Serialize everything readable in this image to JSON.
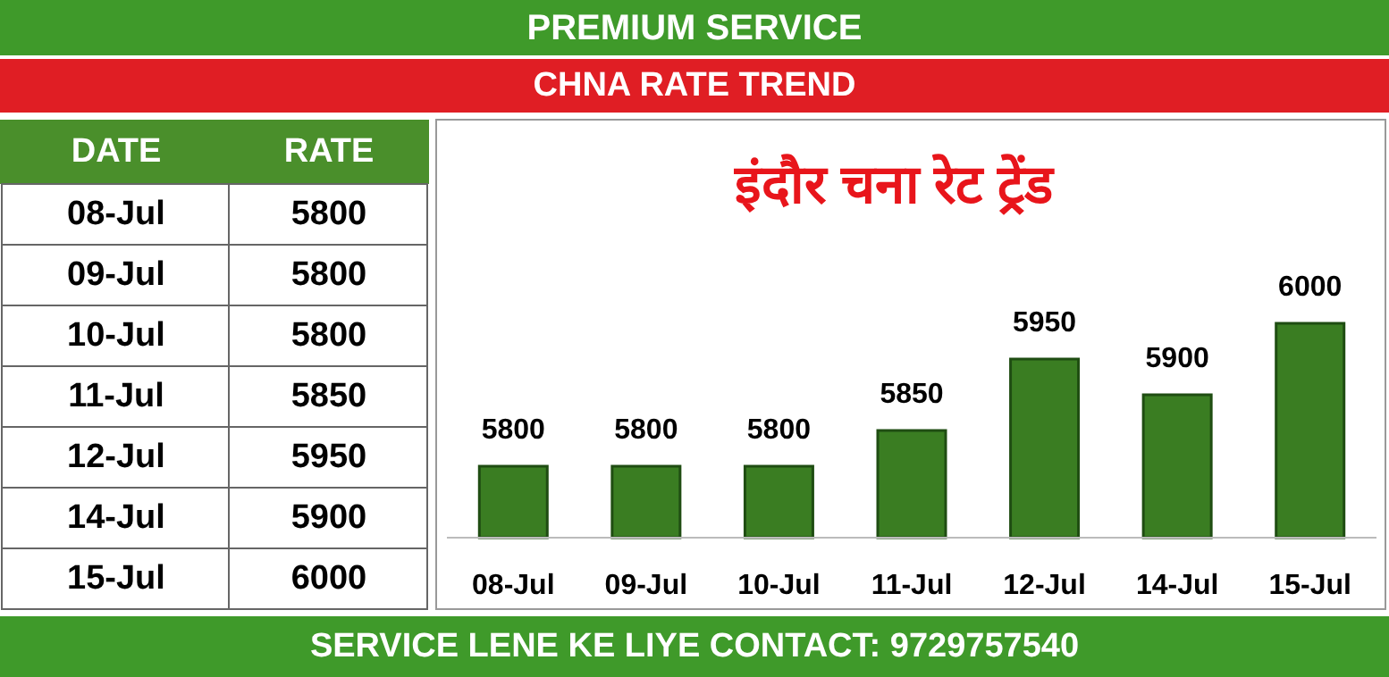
{
  "chart_data": [
    {
      "type": "other",
      "annotations": [
        "DATE",
        "RATE"
      ],
      "categories": [
        "08-Jul",
        "09-Jul",
        "10-Jul",
        "11-Jul",
        "12-Jul",
        "14-Jul",
        "15-Jul"
      ],
      "values": [
        5800,
        5800,
        5800,
        5850,
        5950,
        5900,
        6000
      ],
      "data_labels": true
    },
    {
      "type": "bar",
      "title": "इंदौर चना रेट ट्रेंड",
      "subtitle": "CHNA RATE TREND",
      "categories": [
        "08-Jul",
        "09-Jul",
        "10-Jul",
        "11-Jul",
        "12-Jul",
        "14-Jul",
        "15-Jul"
      ],
      "values": [
        5800,
        5800,
        5800,
        5850,
        5950,
        5900,
        6000
      ],
      "color": "#3a7d22",
      "ylim": [
        5700,
        6285
      ],
      "data_labels": true,
      "annotations": [
        "PREMIUM SERVICE",
        "SERVICE LENE KE LIYE CONTACT: 9729757540"
      ]
    }
  ]
}
